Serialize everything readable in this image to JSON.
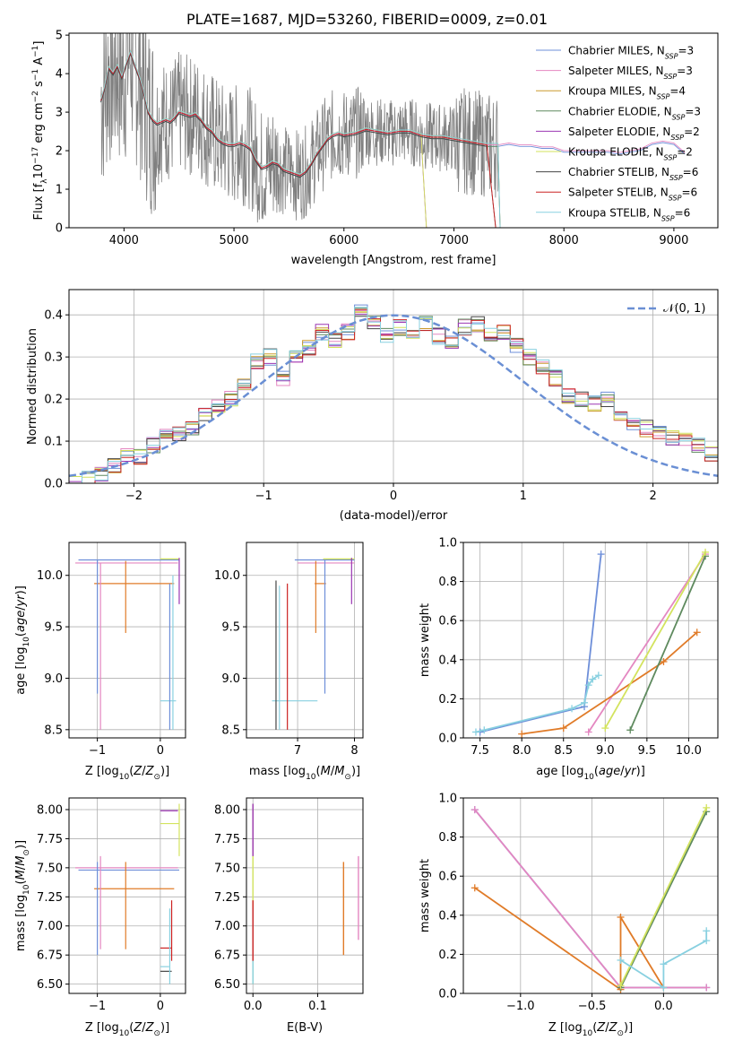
{
  "title": "PLATE=1687, MJD=53260, FIBERID=0009, z=0.01",
  "colors": {
    "chabrier_miles": "#6e8fd9",
    "salpeter_miles": "#e487c1",
    "kroupa_miles": "#cc9a2e",
    "chabrier_elodie": "#5e8a5e",
    "salpeter_elodie": "#9b36b3",
    "kroupa_elodie": "#d3e35e",
    "chabrier_stelib": "#444444",
    "salpeter_stelib": "#cc2222",
    "kroupa_stelib": "#88d0e0",
    "data": "#808080",
    "gaussian": "#6a8fd4",
    "orange": "#e07b28"
  },
  "legend_entries": [
    {
      "label": "Chabrier MILES, N",
      "sub": "SSP",
      "tail": "=3",
      "color_key": "chabrier_miles"
    },
    {
      "label": "Salpeter MILES, N",
      "sub": "SSP",
      "tail": "=3",
      "color_key": "salpeter_miles"
    },
    {
      "label": "Kroupa MILES, N",
      "sub": "SSP",
      "tail": "=4",
      "color_key": "kroupa_miles"
    },
    {
      "label": "Chabrier ELODIE, N",
      "sub": "SSP",
      "tail": "=3",
      "color_key": "chabrier_elodie"
    },
    {
      "label": "Salpeter ELODIE, N",
      "sub": "SSP",
      "tail": "=2",
      "color_key": "salpeter_elodie"
    },
    {
      "label": "Kroupa ELODIE, N",
      "sub": "SSP",
      "tail": "=2",
      "color_key": "kroupa_elodie"
    },
    {
      "label": "Chabrier STELIB, N",
      "sub": "SSP",
      "tail": "=6",
      "color_key": "chabrier_stelib"
    },
    {
      "label": "Salpeter STELIB, N",
      "sub": "SSP",
      "tail": "=6",
      "color_key": "salpeter_stelib"
    },
    {
      "label": "Kroupa STELIB, N",
      "sub": "SSP",
      "tail": "=6",
      "color_key": "kroupa_stelib"
    }
  ],
  "chart_data": [
    {
      "id": "spectrum",
      "type": "line",
      "xlabel": "wavelength [Angstrom, rest frame]",
      "ylabel_parts": [
        "Flux [f",
        "λ",
        "10",
        "−17",
        " erg cm",
        "−2",
        " s",
        "−1",
        " A",
        "−1",
        "]"
      ],
      "xlim": [
        3500,
        9400
      ],
      "ylim": [
        0,
        5.05
      ],
      "xticks": [
        4000,
        5000,
        6000,
        7000,
        8000,
        9000
      ],
      "yticks": [
        0,
        1,
        2,
        3,
        4,
        5
      ],
      "model_curve": {
        "x": [
          3790,
          3820,
          3860,
          3900,
          3940,
          3980,
          4020,
          4060,
          4100,
          4140,
          4180,
          4220,
          4260,
          4300,
          4340,
          4380,
          4420,
          4460,
          4500,
          4550,
          4600,
          4650,
          4700,
          4750,
          4800,
          4850,
          4900,
          4950,
          5000,
          5050,
          5100,
          5150,
          5200,
          5250,
          5300,
          5350,
          5400,
          5450,
          5500,
          5550,
          5600,
          5650,
          5700,
          5750,
          5800,
          5850,
          5900,
          5950,
          6000,
          6100,
          6200,
          6300,
          6400,
          6500,
          6600,
          6700,
          6800,
          6900,
          7000,
          7100,
          7200,
          7300,
          7400,
          7500,
          7600,
          7700,
          7800,
          7900,
          8000,
          8100,
          8200,
          8300,
          8400,
          8500,
          8600,
          8700,
          8800,
          8900,
          9000,
          9100
        ],
        "y": [
          3.3,
          3.6,
          4.15,
          4.0,
          4.2,
          3.9,
          4.25,
          4.55,
          4.2,
          3.9,
          3.5,
          3.0,
          2.8,
          2.7,
          2.75,
          2.8,
          2.75,
          2.85,
          3.0,
          2.95,
          2.9,
          2.95,
          2.8,
          2.6,
          2.5,
          2.3,
          2.2,
          2.15,
          2.15,
          2.2,
          2.15,
          2.05,
          1.75,
          1.55,
          1.6,
          1.7,
          1.65,
          1.5,
          1.45,
          1.4,
          1.35,
          1.45,
          1.65,
          1.9,
          2.1,
          2.3,
          2.4,
          2.45,
          2.4,
          2.45,
          2.55,
          2.5,
          2.45,
          2.5,
          2.5,
          2.4,
          2.35,
          2.35,
          2.3,
          2.25,
          2.2,
          2.15,
          2.15,
          2.2,
          2.15,
          2.15,
          2.1,
          2.1,
          2.0,
          2.0,
          2.0,
          2.0,
          2.0,
          1.95,
          2.0,
          2.05,
          2.2,
          2.25,
          2.2,
          1.95
        ]
      },
      "data_range": [
        3790,
        7400
      ]
    },
    {
      "id": "residuals",
      "type": "histogram",
      "xlabel": "(data-model)/error",
      "ylabel": "Normed distribution",
      "xlim": [
        -2.5,
        2.5
      ],
      "ylim": [
        0,
        0.46
      ],
      "xticks": [
        -2,
        -1,
        0,
        1,
        2
      ],
      "yticks": [
        0.0,
        0.1,
        0.2,
        0.3,
        0.4
      ],
      "bin_width": 0.1,
      "bin_start": -2.5,
      "histogram": [
        0.0,
        0.01,
        0.02,
        0.04,
        0.07,
        0.06,
        0.09,
        0.11,
        0.12,
        0.13,
        0.16,
        0.18,
        0.2,
        0.24,
        0.29,
        0.3,
        0.25,
        0.3,
        0.32,
        0.36,
        0.34,
        0.36,
        0.41,
        0.38,
        0.35,
        0.37,
        0.36,
        0.38,
        0.35,
        0.34,
        0.37,
        0.38,
        0.35,
        0.36,
        0.33,
        0.3,
        0.28,
        0.25,
        0.21,
        0.2,
        0.19,
        0.2,
        0.16,
        0.14,
        0.13,
        0.12,
        0.11,
        0.1,
        0.09,
        0.07,
        0.05
      ],
      "gaussian_label": "𝒩(0, 1)"
    },
    {
      "id": "age_vs_Z",
      "type": "errorbar",
      "xlabel": "Z [log10(Z/Z⊙)]",
      "ylabel": "age  [log10(age/yr)]",
      "xlim": [
        -1.45,
        0.4
      ],
      "ylim": [
        8.42,
        10.32
      ],
      "xticks": [
        -1,
        0
      ],
      "yticks": [
        8.5,
        9.0,
        9.5,
        10.0
      ]
    },
    {
      "id": "age_vs_mass",
      "type": "errorbar",
      "xlabel": "mass [log10(M/M⊙)]",
      "ylabel": "",
      "xlim": [
        6.1,
        8.15
      ],
      "ylim": [
        8.42,
        10.32
      ],
      "xticks": [
        7,
        8
      ],
      "yticks": [
        8.5,
        9.0,
        9.5,
        10.0
      ]
    },
    {
      "id": "massweight_vs_age",
      "type": "line",
      "xlabel": "age  [log10(age/yr)]",
      "ylabel": "mass weight",
      "xlim": [
        7.3,
        10.35
      ],
      "ylim": [
        0,
        1.0
      ],
      "xticks": [
        7.5,
        8.0,
        8.5,
        9.0,
        9.5,
        10.0
      ],
      "yticks": [
        0.0,
        0.2,
        0.4,
        0.6,
        0.8,
        1.0
      ],
      "series": [
        {
          "color_key": "chabrier_miles",
          "x": [
            7.5,
            8.75,
            8.95
          ],
          "y": [
            0.03,
            0.16,
            0.94
          ]
        },
        {
          "color_key": "salpeter_miles",
          "x": [
            8.8,
            10.2
          ],
          "y": [
            0.03,
            0.94
          ]
        },
        {
          "color_key": "orange",
          "x": [
            8.0,
            8.5,
            9.7,
            10.1
          ],
          "y": [
            0.02,
            0.05,
            0.39,
            0.54
          ]
        },
        {
          "color_key": "chabrier_elodie",
          "x": [
            9.3,
            10.2
          ],
          "y": [
            0.04,
            0.93
          ]
        },
        {
          "color_key": "kroupa_elodie",
          "x": [
            9.0,
            10.2
          ],
          "y": [
            0.05,
            0.95
          ]
        },
        {
          "color_key": "kroupa_stelib",
          "x": [
            7.45,
            7.55,
            8.6,
            8.75,
            8.8,
            8.85,
            8.92
          ],
          "y": [
            0.03,
            0.04,
            0.15,
            0.18,
            0.27,
            0.3,
            0.32
          ]
        }
      ]
    },
    {
      "id": "mass_vs_Z",
      "type": "errorbar",
      "xlabel": "Z [log10(Z/Z⊙)]",
      "ylabel": "mass [log10(M/M⊙)]",
      "xlim": [
        -1.45,
        0.4
      ],
      "ylim": [
        6.42,
        8.1
      ],
      "xticks": [
        -1,
        0
      ],
      "yticks": [
        6.5,
        6.75,
        7.0,
        7.25,
        7.5,
        7.75,
        8.0
      ]
    },
    {
      "id": "mass_vs_ebv",
      "type": "errorbar",
      "xlabel": "E(B-V)",
      "ylabel": "",
      "xlim": [
        -0.01,
        0.17
      ],
      "ylim": [
        6.42,
        8.1
      ],
      "xticks": [
        0.0,
        0.1
      ],
      "yticks": [
        6.5,
        6.75,
        7.0,
        7.25,
        7.5,
        7.75,
        8.0
      ]
    },
    {
      "id": "massweight_vs_Z",
      "type": "line",
      "xlabel": "Z [log10(Z/Z⊙)]",
      "ylabel": "mass weight",
      "xlim": [
        -1.4,
        0.38
      ],
      "ylim": [
        0,
        1.0
      ],
      "xticks": [
        -1.0,
        -0.5,
        0.0
      ],
      "yticks": [
        0.0,
        0.2,
        0.4,
        0.6,
        0.8,
        1.0
      ],
      "series": [
        {
          "color_key": "chabrier_miles",
          "x": [
            -1.32,
            -0.3,
            0.3
          ],
          "y": [
            0.94,
            0.03,
            0.03
          ]
        },
        {
          "color_key": "salpeter_miles",
          "x": [
            -1.32,
            -0.3,
            0.3
          ],
          "y": [
            0.94,
            0.03,
            0.03
          ]
        },
        {
          "color_key": "orange",
          "x": [
            -1.32,
            -0.3,
            -0.3,
            0.0
          ],
          "y": [
            0.54,
            0.02,
            0.39,
            0.03
          ]
        },
        {
          "color_key": "chabrier_elodie",
          "x": [
            -0.3,
            0.3
          ],
          "y": [
            0.03,
            0.93
          ]
        },
        {
          "color_key": "kroupa_elodie",
          "x": [
            -0.3,
            0.3
          ],
          "y": [
            0.04,
            0.95
          ]
        },
        {
          "color_key": "kroupa_stelib",
          "x": [
            -0.3,
            0.0,
            0.0,
            0.3,
            0.3
          ],
          "y": [
            0.17,
            0.03,
            0.15,
            0.27,
            0.32
          ]
        }
      ]
    }
  ]
}
